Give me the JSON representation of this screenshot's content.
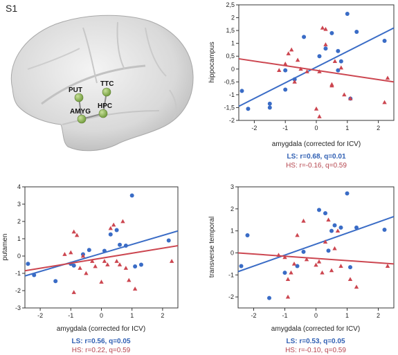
{
  "page_label": "S1",
  "colors": {
    "ls": "#3a6cc6",
    "hs": "#cc4650",
    "ls_text": "#2f5fb3",
    "hs_text": "#b5454e"
  },
  "brain": {
    "regions": [
      {
        "id": "put",
        "label": "PUT"
      },
      {
        "id": "ttc",
        "label": "TTC"
      },
      {
        "id": "hpc",
        "label": "HPC"
      },
      {
        "id": "amyg",
        "label": "AMYG"
      }
    ]
  },
  "chart_data": [
    {
      "id": "hippocampus",
      "type": "scatter",
      "xlabel": "amygdala (corrected for ICV)",
      "ylabel": "hippocampus",
      "xlim": [
        -2.5,
        2.5
      ],
      "ylim": [
        -2,
        2.5
      ],
      "xticks": [
        -2,
        -1,
        0,
        1,
        2
      ],
      "yticks": [
        2.5,
        2,
        1.5,
        1,
        0.5,
        0,
        -0.5,
        -1,
        -1.5,
        -2
      ],
      "ytick_labels": [
        "2,5",
        "2",
        "1,5",
        "1",
        "0,5",
        "0",
        "-0,5",
        "-1",
        "-1,5",
        "-2"
      ],
      "stats": {
        "ls": "LS: r=0.68, q=0.01",
        "hs": "HS: r=-0.16, q=0.59"
      },
      "series": [
        {
          "name": "LS",
          "marker": "circle",
          "points": [
            [
              -2.4,
              -0.85
            ],
            [
              -2.2,
              -1.55
            ],
            [
              -1.5,
              -1.35
            ],
            [
              -1.5,
              -1.5
            ],
            [
              -1.0,
              -0.8
            ],
            [
              -1.0,
              -0.05
            ],
            [
              -0.7,
              -0.4
            ],
            [
              -0.4,
              1.25
            ],
            [
              0.1,
              0.5
            ],
            [
              0.3,
              0.8
            ],
            [
              0.5,
              1.4
            ],
            [
              0.7,
              0.7
            ],
            [
              0.7,
              -0.05
            ],
            [
              0.8,
              0.3
            ],
            [
              1.0,
              2.15
            ],
            [
              1.1,
              -1.15
            ],
            [
              1.3,
              1.45
            ],
            [
              2.2,
              1.1
            ]
          ],
          "fit": [
            [
              -2.5,
              -1.45
            ],
            [
              2.5,
              1.6
            ]
          ]
        },
        {
          "name": "HS",
          "marker": "triangle",
          "points": [
            [
              -1.2,
              -0.05
            ],
            [
              -1.0,
              0.2
            ],
            [
              -0.9,
              0.6
            ],
            [
              -0.8,
              0.75
            ],
            [
              -0.6,
              0.35
            ],
            [
              -0.7,
              -0.5
            ],
            [
              -0.5,
              0.0
            ],
            [
              -0.3,
              -0.1
            ],
            [
              0.0,
              -1.55
            ],
            [
              0.1,
              -1.85
            ],
            [
              0.1,
              -0.1
            ],
            [
              0.2,
              1.6
            ],
            [
              0.3,
              1.55
            ],
            [
              0.3,
              0.95
            ],
            [
              0.5,
              -0.6
            ],
            [
              0.5,
              -0.65
            ],
            [
              0.6,
              0.3
            ],
            [
              0.8,
              0.05
            ],
            [
              0.9,
              -1.0
            ],
            [
              1.1,
              -1.15
            ],
            [
              2.2,
              -1.3
            ],
            [
              2.3,
              -0.35
            ]
          ],
          "fit": [
            [
              -2.5,
              0.4
            ],
            [
              2.5,
              -0.5
            ]
          ]
        }
      ]
    },
    {
      "id": "putamen",
      "type": "scatter",
      "xlabel": "amygdala (corrected for ICV)",
      "ylabel": "putamen",
      "xlim": [
        -2.5,
        2.5
      ],
      "ylim": [
        -3,
        4
      ],
      "xticks": [
        -2,
        -1,
        0,
        1,
        2
      ],
      "yticks": [
        4,
        3,
        2,
        1,
        0,
        -1,
        -2,
        -3
      ],
      "ytick_labels": [
        "4",
        "3",
        "2",
        "1",
        "0",
        "-1",
        "-2",
        "-3"
      ],
      "stats": {
        "ls": "LS: r=0.56, q=0.05",
        "hs": "HS: r=0.22, q=0.59"
      },
      "series": [
        {
          "name": "LS",
          "marker": "circle",
          "points": [
            [
              -2.4,
              -0.45
            ],
            [
              -2.2,
              -1.1
            ],
            [
              -1.5,
              -1.45
            ],
            [
              -1.0,
              -0.45
            ],
            [
              -0.9,
              -0.55
            ],
            [
              -0.6,
              0.1
            ],
            [
              -0.4,
              0.35
            ],
            [
              0.1,
              0.3
            ],
            [
              0.3,
              1.25
            ],
            [
              0.5,
              1.5
            ],
            [
              0.6,
              0.65
            ],
            [
              0.8,
              0.6
            ],
            [
              1.0,
              3.5
            ],
            [
              1.1,
              -0.6
            ],
            [
              1.3,
              -0.5
            ],
            [
              2.2,
              0.9
            ]
          ],
          "fit": [
            [
              -2.5,
              -1.15
            ],
            [
              2.5,
              1.45
            ]
          ]
        },
        {
          "name": "HS",
          "marker": "triangle",
          "points": [
            [
              -1.2,
              0.1
            ],
            [
              -1.0,
              0.2
            ],
            [
              -0.9,
              1.4
            ],
            [
              -0.8,
              1.2
            ],
            [
              -0.7,
              -0.7
            ],
            [
              -0.9,
              -2.1
            ],
            [
              -0.6,
              0.0
            ],
            [
              -0.5,
              -1.0
            ],
            [
              -0.3,
              -0.3
            ],
            [
              -0.2,
              -0.6
            ],
            [
              0.0,
              -1.5
            ],
            [
              0.1,
              -0.3
            ],
            [
              0.2,
              -0.5
            ],
            [
              0.3,
              1.6
            ],
            [
              0.4,
              1.8
            ],
            [
              0.5,
              -0.3
            ],
            [
              0.6,
              -0.5
            ],
            [
              0.7,
              2.0
            ],
            [
              0.8,
              -0.7
            ],
            [
              0.9,
              -1.4
            ],
            [
              1.1,
              -1.9
            ],
            [
              2.3,
              -0.3
            ]
          ],
          "fit": [
            [
              -2.5,
              -0.85
            ],
            [
              2.5,
              0.6
            ]
          ]
        }
      ]
    },
    {
      "id": "transverse-temporal",
      "type": "scatter",
      "xlabel": "amygdala (corrected for ICV)",
      "ylabel": "transverse temporal",
      "xlim": [
        -2.5,
        2.5
      ],
      "ylim": [
        -2.5,
        3
      ],
      "xticks": [
        -2,
        -1,
        0,
        1,
        2
      ],
      "yticks": [
        3,
        2,
        1,
        0,
        -1,
        -2
      ],
      "ytick_labels": [
        "3",
        "2",
        "1",
        "0",
        "-1",
        "-2"
      ],
      "stats": {
        "ls": "LS: r=0.53, q=0.05",
        "hs": "HS: r=-0.10, q=0.59"
      },
      "series": [
        {
          "name": "LS",
          "marker": "circle",
          "points": [
            [
              -2.4,
              -0.6
            ],
            [
              -2.2,
              0.8
            ],
            [
              -1.5,
              -2.05
            ],
            [
              -1.0,
              -0.9
            ],
            [
              -0.6,
              -0.6
            ],
            [
              -0.4,
              0.05
            ],
            [
              0.1,
              1.95
            ],
            [
              0.3,
              1.8
            ],
            [
              0.4,
              0.1
            ],
            [
              0.5,
              1.0
            ],
            [
              0.6,
              1.25
            ],
            [
              0.8,
              1.15
            ],
            [
              1.0,
              2.7
            ],
            [
              1.1,
              -0.65
            ],
            [
              1.3,
              1.15
            ],
            [
              2.2,
              1.05
            ]
          ],
          "fit": [
            [
              -2.5,
              -0.85
            ],
            [
              2.5,
              1.65
            ]
          ]
        },
        {
          "name": "HS",
          "marker": "triangle",
          "points": [
            [
              -1.2,
              -0.1
            ],
            [
              -1.0,
              -0.2
            ],
            [
              -0.9,
              -1.2
            ],
            [
              -0.8,
              -0.9
            ],
            [
              -0.7,
              -0.5
            ],
            [
              -0.9,
              -2.0
            ],
            [
              -0.6,
              0.8
            ],
            [
              -0.4,
              1.45
            ],
            [
              -0.3,
              -0.3
            ],
            [
              0.0,
              -0.55
            ],
            [
              0.1,
              -0.4
            ],
            [
              0.2,
              -0.9
            ],
            [
              0.3,
              0.5
            ],
            [
              0.4,
              1.5
            ],
            [
              0.5,
              -0.8
            ],
            [
              0.6,
              0.2
            ],
            [
              0.7,
              1.0
            ],
            [
              0.8,
              -0.6
            ],
            [
              1.1,
              -1.2
            ],
            [
              1.3,
              -1.55
            ],
            [
              2.3,
              -0.6
            ]
          ],
          "fit": [
            [
              -2.5,
              0.0
            ],
            [
              2.5,
              -0.5
            ]
          ]
        }
      ]
    }
  ]
}
